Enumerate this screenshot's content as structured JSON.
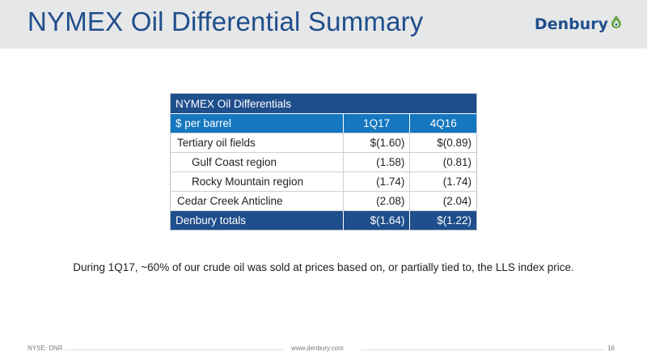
{
  "slide": {
    "title": "NYMEX Oil Differential Summary"
  },
  "logo": {
    "text": "Denbury",
    "brand_color": "#1f4e8c",
    "accent_color": "#6aa84f"
  },
  "table": {
    "title": "NYMEX Oil Differentials",
    "headers": {
      "label": "$ per barrel",
      "col1": "1Q17",
      "col2": "4Q16"
    },
    "rows": [
      {
        "label": "Tertiary oil fields",
        "col1": "$(1.60)",
        "col2": "$(0.89)"
      },
      {
        "label": "Gulf Coast region",
        "col1": "(1.58)",
        "col2": "(0.81)"
      },
      {
        "label": "Rocky Mountain region",
        "col1": "(1.74)",
        "col2": "(1.74)"
      },
      {
        "label": "Cedar Creek Anticline",
        "col1": "(2.08)",
        "col2": "(2.04)"
      }
    ],
    "total": {
      "label": "Denbury totals",
      "col1": "$(1.64)",
      "col2": "$(1.22)"
    }
  },
  "note": "During 1Q17, ~60% of our crude oil was sold at prices based on, or partially tied to, the LLS index price.",
  "footer": {
    "left": "NYSE: DNR",
    "center": "www.denbury.com",
    "page": "16"
  }
}
